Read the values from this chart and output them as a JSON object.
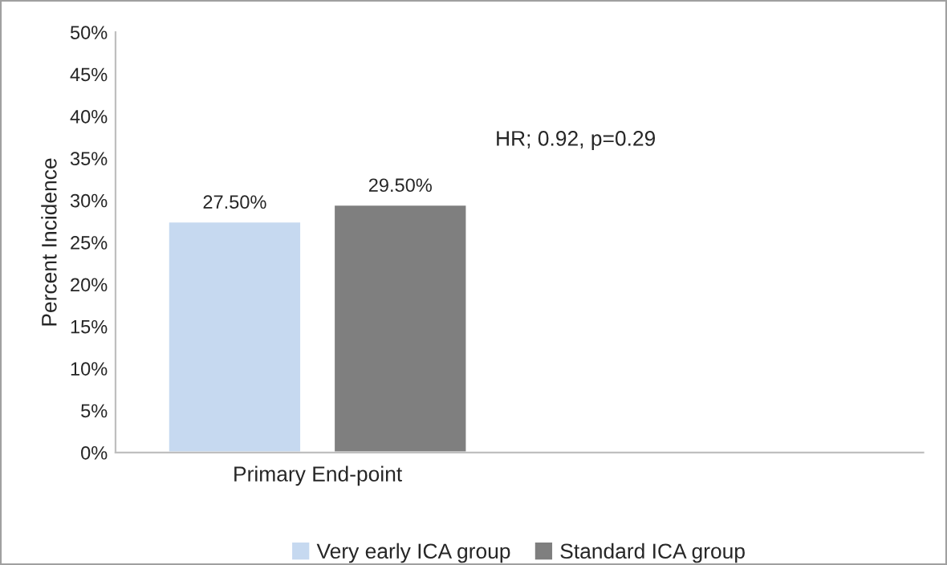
{
  "chart_data": {
    "type": "bar",
    "ylabel": "Percent Incidence",
    "categories": [
      "Primary End-point",
      null
    ],
    "series": [
      {
        "name": "Very early ICA group",
        "color": "#c6d9f0",
        "values": [
          27.5,
          null
        ],
        "value_labels": [
          "27.50%",
          null
        ]
      },
      {
        "name": "Standard ICA group",
        "color": "#7f7f7f",
        "values": [
          29.5,
          null
        ],
        "value_labels": [
          "29.50%",
          null
        ]
      }
    ],
    "ylim": [
      0,
      50
    ],
    "yticks": [
      {
        "value": 0,
        "label": "0%"
      },
      {
        "value": 5,
        "label": "5%"
      },
      {
        "value": 10,
        "label": "10%"
      },
      {
        "value": 15,
        "label": "15%"
      },
      {
        "value": 20,
        "label": "20%"
      },
      {
        "value": 25,
        "label": "25%"
      },
      {
        "value": 30,
        "label": "30%"
      },
      {
        "value": 35,
        "label": "35%"
      },
      {
        "value": 40,
        "label": "40%"
      },
      {
        "value": 45,
        "label": "45%"
      },
      {
        "value": 50,
        "label": "50%"
      }
    ],
    "annotations": [
      "HR; 0.92, p=0.29"
    ],
    "grid": false,
    "legend": "bottom"
  }
}
